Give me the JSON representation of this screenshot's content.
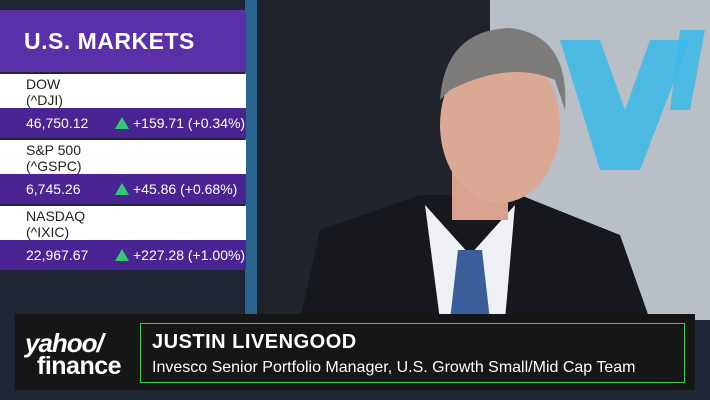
{
  "markets": {
    "title": "U.S. MARKETS",
    "rows": [
      {
        "name": "DOW",
        "symbol": "(^DJI)",
        "price": "46,750.12",
        "change": "+159.71",
        "percent": "(+0.34%)"
      },
      {
        "name": "S&P 500",
        "symbol": "(^GSPC)",
        "price": "6,745.26",
        "change": "+45.86",
        "percent": "(+0.68%)"
      },
      {
        "name": "NASDAQ",
        "symbol": "(^IXIC)",
        "price": "22,967.67",
        "change": "+227.28",
        "percent": "(+1.00%)"
      }
    ]
  },
  "lower_third": {
    "brand_top": "yahoo/",
    "brand_bottom": "finance",
    "name": "JUSTIN LIVENGOOD",
    "role": "Invesco Senior Portfolio Manager, U.S. Growth Small/Mid Cap Team"
  }
}
